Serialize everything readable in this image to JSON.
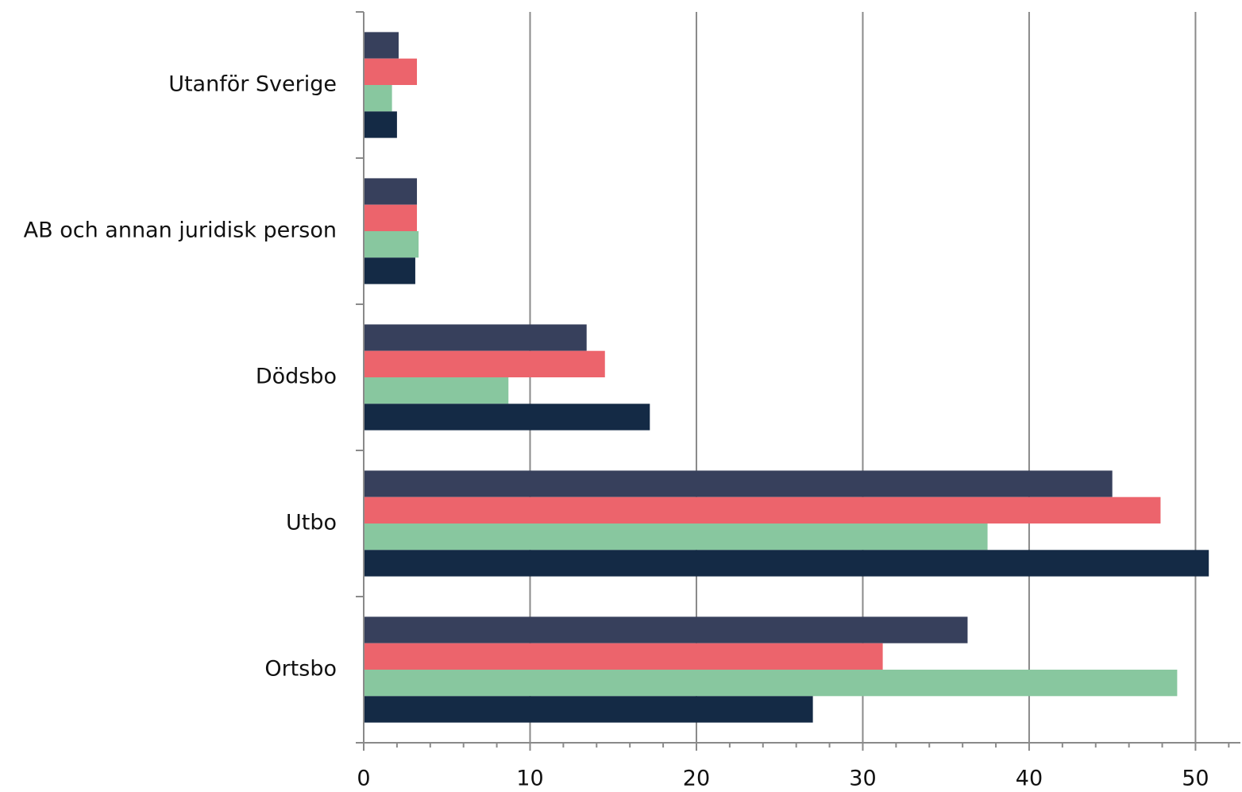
{
  "chart_data": {
    "type": "hbar",
    "categories": [
      "Utanför Sverige",
      "AB och annan juridisk person",
      "Dödsbo",
      "Utbo",
      "Ortsbo"
    ],
    "series": [
      {
        "color": "#37405c",
        "values": [
          2.1,
          3.2,
          13.4,
          45.0,
          36.3
        ]
      },
      {
        "color": "#ec646c",
        "values": [
          3.2,
          3.2,
          14.5,
          47.9,
          31.2
        ]
      },
      {
        "color": "#88c79f",
        "values": [
          1.7,
          3.3,
          8.7,
          37.5,
          48.9
        ]
      },
      {
        "color": "#142a45",
        "values": [
          2.0,
          3.1,
          17.2,
          50.8,
          27.0
        ]
      }
    ],
    "xlim": [
      0,
      52.7
    ],
    "xticks": [
      0,
      10,
      20,
      30,
      40,
      50
    ],
    "xminorticks": [
      2,
      4,
      6,
      8,
      12,
      14,
      16,
      18,
      22,
      24,
      26,
      28,
      32,
      34,
      36,
      38,
      42,
      44,
      46,
      48,
      52
    ],
    "grid": true
  }
}
